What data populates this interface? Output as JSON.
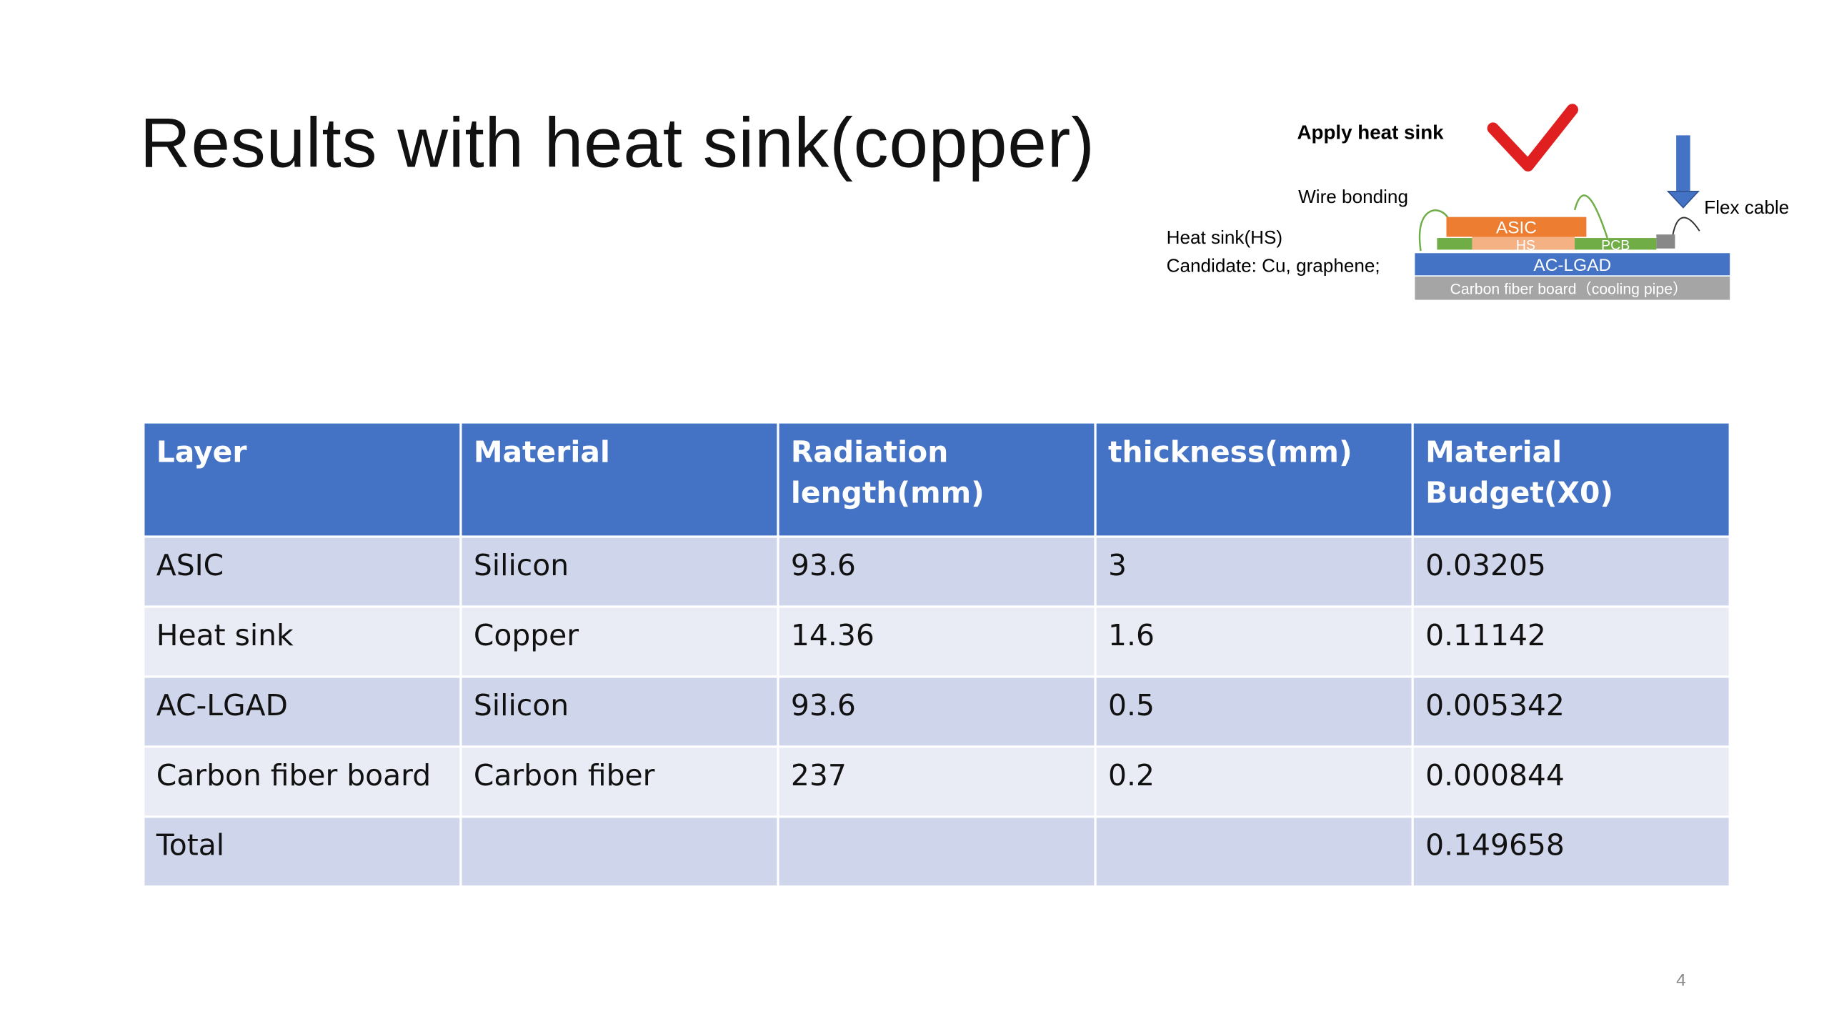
{
  "title": "Results with heat sink(copper)",
  "diagram": {
    "apply": "Apply heat sink",
    "wire": "Wire bonding",
    "flex": "Flex cable",
    "hs": "Heat sink(HS)",
    "candidate": "Candidate: Cu, graphene;",
    "asic": "ASIC",
    "hs_layer": "HS",
    "pcb": "PCB",
    "lgad": "AC-LGAD",
    "carbon": "Carbon fiber board（cooling pipe）"
  },
  "table": {
    "header": [
      "Layer",
      "Material",
      "Radiation length(mm)",
      "thickness(mm)",
      "Material Budget(X0)"
    ],
    "rows": [
      [
        "ASIC",
        "Silicon",
        "93.6",
        "3",
        "0.03205"
      ],
      [
        "Heat sink",
        "Copper",
        "14.36",
        "1.6",
        "0.11142"
      ],
      [
        "AC-LGAD",
        "Silicon",
        "93.6",
        "0.5",
        "0.005342"
      ],
      [
        "Carbon fiber board",
        "Carbon fiber",
        "237",
        "0.2",
        "0.000844"
      ]
    ],
    "total": {
      "label": "Total",
      "value": "0.149658"
    }
  },
  "page_number": "4"
}
